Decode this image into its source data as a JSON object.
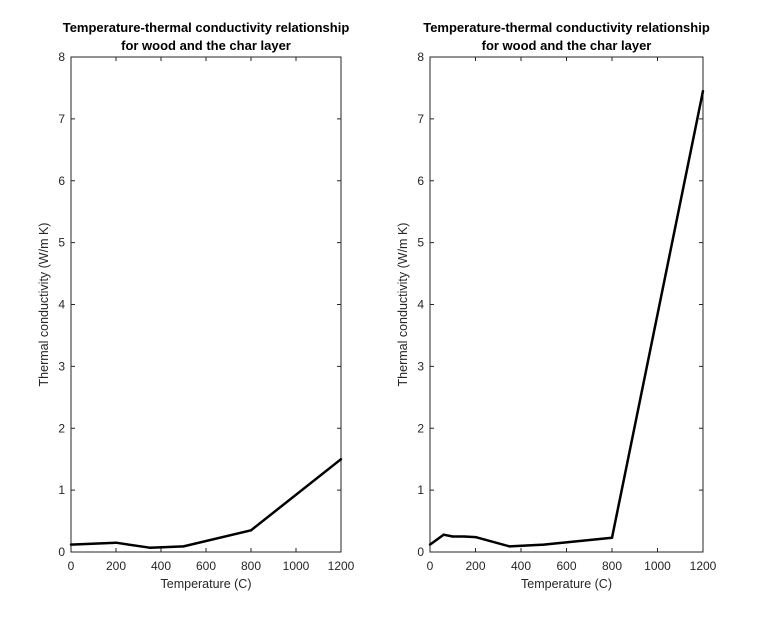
{
  "chart_data": [
    {
      "type": "line",
      "title_lines": [
        "Temperature-thermal conductivity relationship",
        "for wood and the char layer"
      ],
      "xlabel": "Temperature (C)",
      "ylabel": "Thermal conductivity (W/m K)",
      "xlim": [
        0,
        1200
      ],
      "ylim": [
        0,
        8
      ],
      "xticks": [
        0,
        200,
        400,
        600,
        800,
        1000,
        1200
      ],
      "yticks": [
        0,
        1,
        2,
        3,
        4,
        5,
        6,
        7,
        8
      ],
      "grid": false,
      "line_color": "#000000",
      "series": [
        {
          "x": [
            0,
            200,
            350,
            500,
            800,
            1200
          ],
          "y": [
            0.12,
            0.15,
            0.07,
            0.09,
            0.35,
            1.5
          ]
        }
      ]
    },
    {
      "type": "line",
      "title_lines": [
        "Temperature-thermal conductivity relationship",
        "for wood and the char layer"
      ],
      "xlabel": "Temperature (C)",
      "ylabel": "Thermal conductivity (W/m K)",
      "xlim": [
        0,
        1200
      ],
      "ylim": [
        0,
        8
      ],
      "xticks": [
        0,
        200,
        400,
        600,
        800,
        1000,
        1200
      ],
      "yticks": [
        0,
        1,
        2,
        3,
        4,
        5,
        6,
        7,
        8
      ],
      "grid": false,
      "line_color": "#000000",
      "series": [
        {
          "x": [
            0,
            60,
            100,
            150,
            200,
            350,
            500,
            800,
            1200
          ],
          "y": [
            0.12,
            0.28,
            0.25,
            0.25,
            0.24,
            0.09,
            0.12,
            0.23,
            7.45
          ]
        }
      ]
    }
  ]
}
